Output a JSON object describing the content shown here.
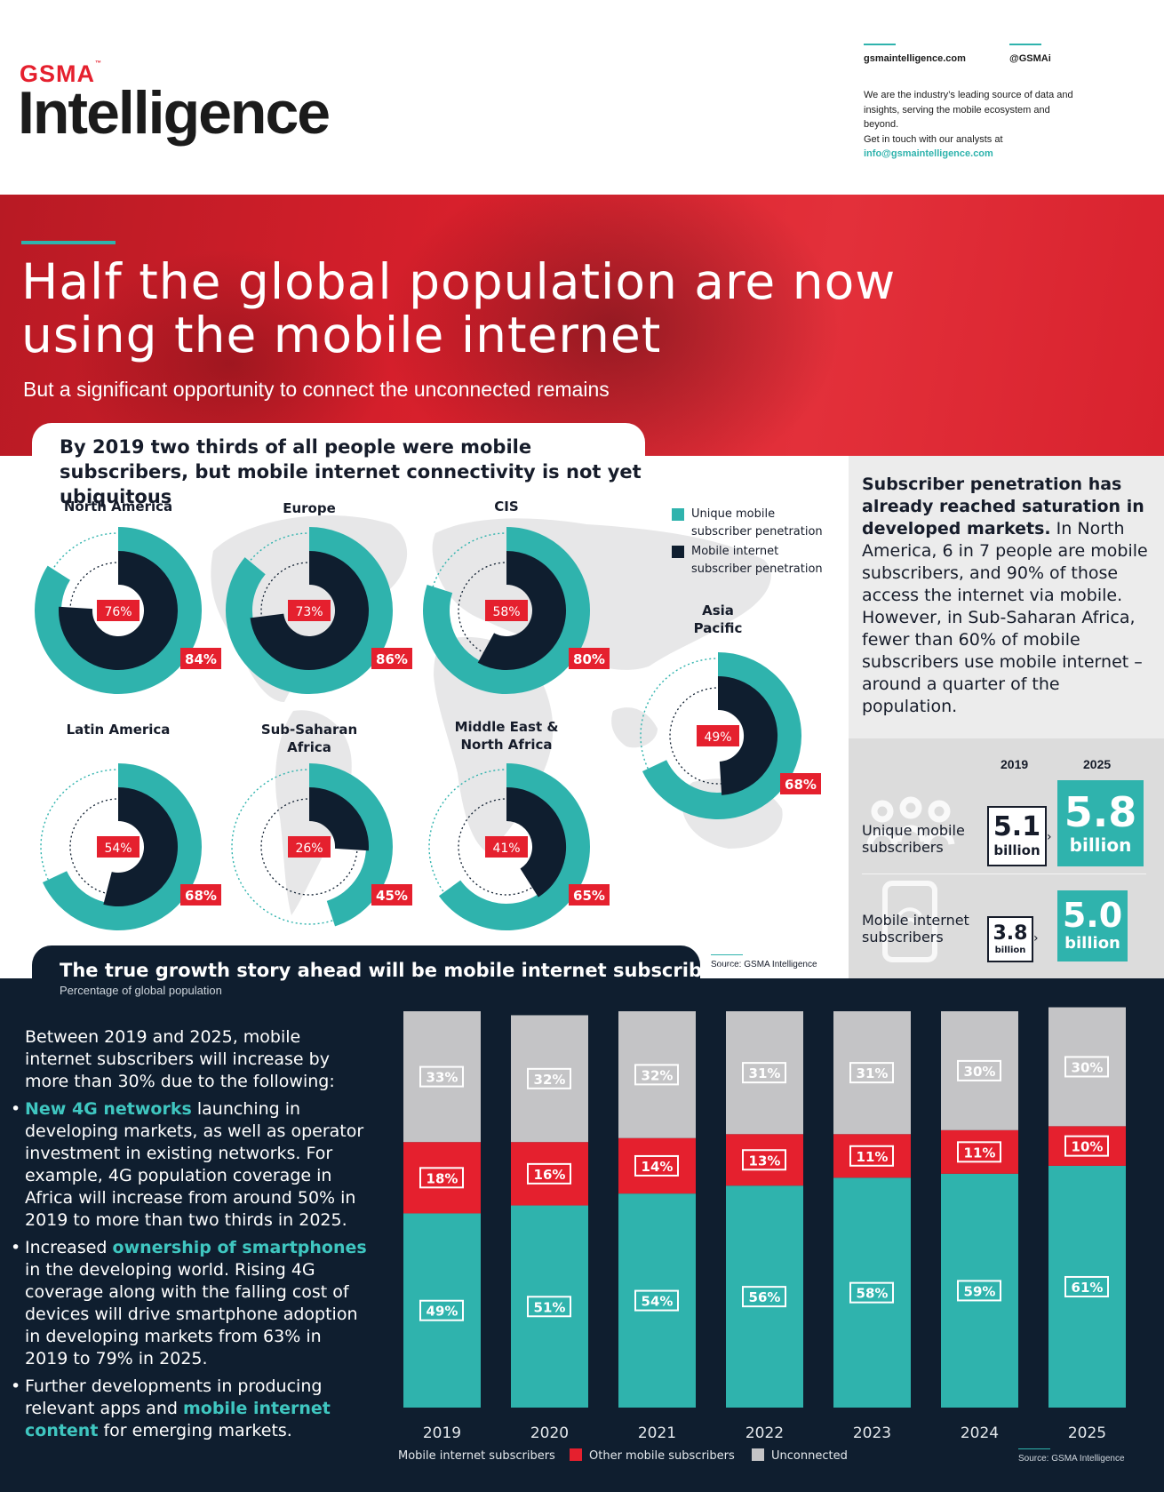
{
  "header": {
    "logo_top": "GSMA",
    "logo_tm": "™",
    "logo_main": "Intelligence",
    "website": "gsmaintelligence.com",
    "twitter": "@GSMAi",
    "description": "We are the industry’s leading source of data and insights, serving the mobile ecosystem and beyond.",
    "contact_line": "Get in touch with our analysts at",
    "email": "info@gsmaintelligence.com"
  },
  "hero": {
    "title": "Half the global population are now using the mobile internet",
    "subtitle": "But a significant opportunity to connect the unconnected remains"
  },
  "section1": {
    "title": "By 2019 two thirds of all people were mobile subscribers, but mobile internet connectivity is not yet ubiquitous",
    "legend_unique": "Unique mobile subscriber penetration",
    "legend_internet": "Mobile internet subscriber penetration",
    "source": "Source: GSMA Intelligence"
  },
  "sidebar": {
    "bold": "Subscriber penetration has already reached saturation in developed markets.",
    "text": " In North America, 6 in 7 people are mobile subscribers, and 90% of those access the internet via mobile. However, in Sub-Saharan Africa, fewer than 60% of mobile subscribers use mobile internet – around a quarter of the population.",
    "year_a": "2019",
    "year_b": "2025",
    "row1_label": "Unique mobile subscribers",
    "row1_2019": "5.1",
    "row1_2025": "5.8",
    "row2_label": "Mobile internet subscribers",
    "row2_2019": "3.8",
    "row2_2025": "5.0",
    "unit": "billion"
  },
  "section2": {
    "title": "The true growth story ahead will be mobile internet subscribers",
    "subtitle": "Percentage of global population",
    "intro": "Between 2019 and 2025, mobile internet subscribers will increase by more than 30% due to the following:",
    "b1_hl": "New 4G networks",
    "b1_text": " launching in developing markets, as well as operator investment in existing networks. For example, 4G population coverage in Africa will increase from around 50% in 2019 to more than two thirds in 2025.",
    "b2_pre": "Increased ",
    "b2_hl": "ownership of smartphones",
    "b2_text": " in the developing world. Rising 4G coverage along with the falling cost of devices will drive smartphone adoption in developing markets from 63% in 2019 to 79% in 2025.",
    "b3_pre": "Further developments in producing relevant apps and ",
    "b3_hl": "mobile internet content",
    "b3_text": " for emerging markets.",
    "source": "Source: GSMA Intelligence"
  },
  "colors": {
    "teal": "#2fb3ad",
    "navy": "#0f1e2f",
    "red": "#e5202e",
    "grey": "#c4c4c6"
  },
  "chart_data": [
    {
      "type": "donut",
      "title": "By 2019 two thirds of all people were mobile subscribers, but mobile internet connectivity is not yet ubiquitous",
      "unit": "%",
      "series": [
        {
          "name": "Unique mobile subscriber penetration",
          "color": "#2fb3ad"
        },
        {
          "name": "Mobile internet subscriber penetration",
          "color": "#0f1e2f"
        }
      ],
      "regions": [
        {
          "name": "North America",
          "unique": 84,
          "internet": 76
        },
        {
          "name": "Europe",
          "unique": 86,
          "internet": 73
        },
        {
          "name": "CIS",
          "unique": 80,
          "internet": 58
        },
        {
          "name": "Asia Pacific",
          "unique": 68,
          "internet": 49
        },
        {
          "name": "Latin America",
          "unique": 68,
          "internet": 54
        },
        {
          "name": "Sub-Saharan Africa",
          "unique": 45,
          "internet": 26
        },
        {
          "name": "Middle East & North Africa",
          "unique": 65,
          "internet": 41
        }
      ]
    },
    {
      "type": "bar",
      "stacked": true,
      "title": "The true growth story ahead will be mobile internet subscribers",
      "subtitle": "Percentage of global population",
      "categories": [
        "2019",
        "2020",
        "2021",
        "2022",
        "2023",
        "2024",
        "2025"
      ],
      "series": [
        {
          "name": "Mobile internet subscribers",
          "color": "#2fb3ad",
          "values": [
            49,
            51,
            54,
            56,
            58,
            59,
            61
          ]
        },
        {
          "name": "Other mobile subscribers",
          "color": "#e5202e",
          "values": [
            18,
            16,
            14,
            13,
            11,
            11,
            10
          ]
        },
        {
          "name": "Unconnected",
          "color": "#c4c4c6",
          "values": [
            33,
            32,
            32,
            31,
            31,
            30,
            30
          ]
        }
      ],
      "ylim": [
        0,
        100
      ]
    }
  ]
}
